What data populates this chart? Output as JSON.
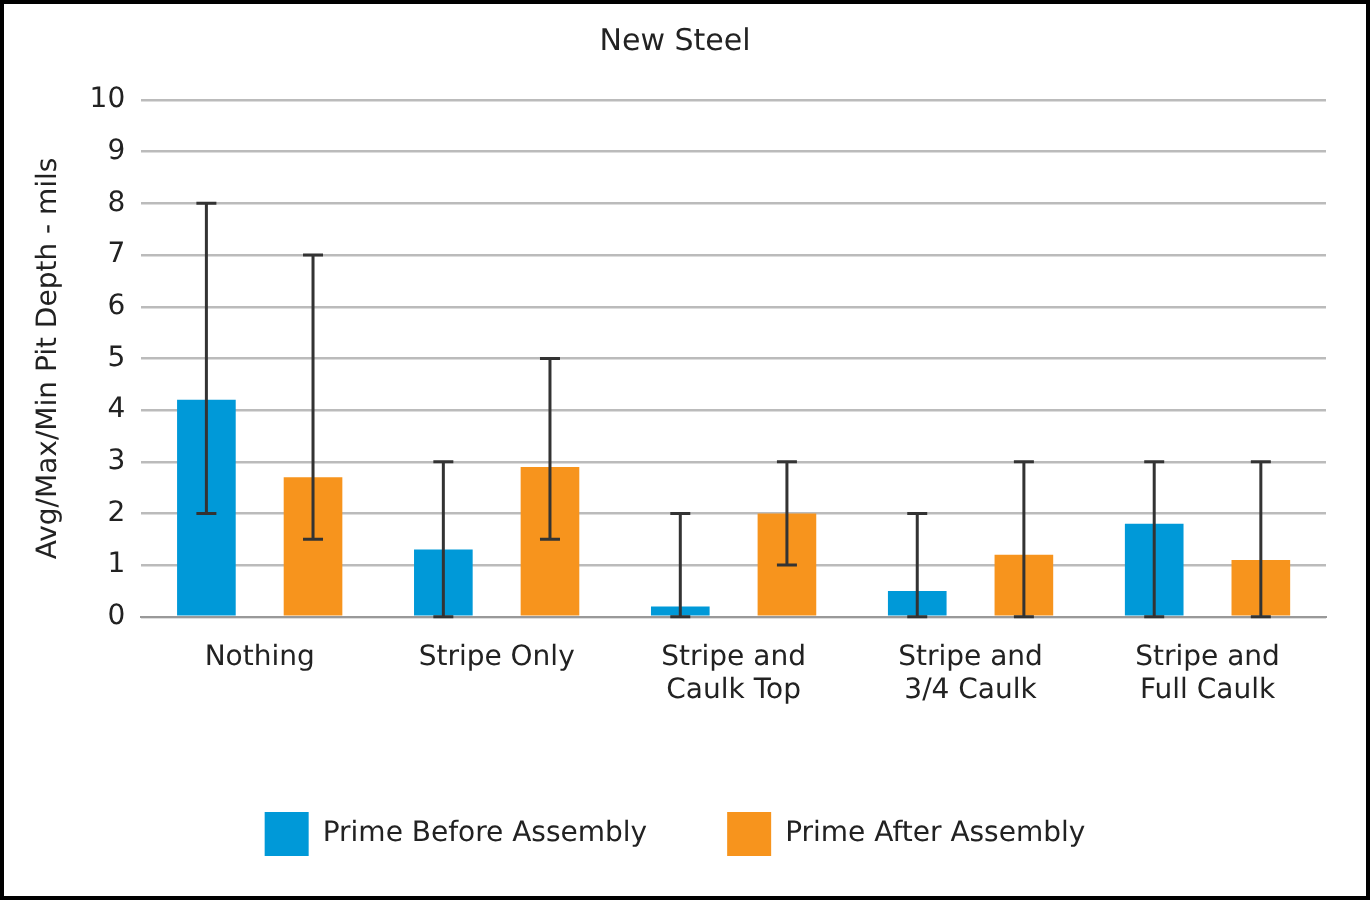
{
  "chart_data": {
    "type": "bar",
    "title": "New Steel",
    "ylabel": "Avg/Max/Min Pit Depth - mils",
    "categories": [
      "Nothing",
      "Stripe Only",
      "Stripe and Caulk Top",
      "Stripe and 3/4 Caulk",
      "Stripe and Full Caulk"
    ],
    "series": [
      {
        "name": "Prime Before Assembly",
        "color": "#0099d8",
        "values": [
          4.2,
          1.3,
          0.2,
          0.5,
          1.8
        ],
        "errors": [
          [
            2,
            8
          ],
          [
            0,
            3
          ],
          [
            0,
            2
          ],
          [
            0,
            2
          ],
          [
            0,
            3
          ]
        ]
      },
      {
        "name": "Prime After Assembly",
        "color": "#f7941d",
        "values": [
          2.7,
          2.9,
          2.0,
          1.2,
          1.1
        ],
        "errors": [
          [
            1.5,
            7
          ],
          [
            1.5,
            5
          ],
          [
            1,
            3
          ],
          [
            0,
            3
          ],
          [
            0,
            3
          ]
        ]
      }
    ],
    "ylim": [
      0,
      10
    ],
    "yticks": [
      0,
      1,
      2,
      3,
      4,
      5,
      6,
      7,
      8,
      9,
      10
    ],
    "grid": "y",
    "legend": "bottom"
  }
}
